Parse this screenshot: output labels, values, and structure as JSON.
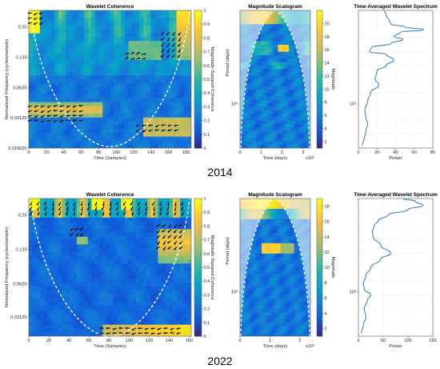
{
  "figure": {
    "rows": [
      {
        "year_label": "2014"
      },
      {
        "year_label": "2022"
      }
    ]
  },
  "colors": {
    "parula": [
      "#352a87",
      "#0f5cdd",
      "#1481d6",
      "#06a4ca",
      "#2eb7a4",
      "#87bf77",
      "#d1bb59",
      "#fec832",
      "#f9fb0e"
    ],
    "coi_line": "#ffffff",
    "arrow": "#000000",
    "spectrum_line": "#2c7fb8"
  },
  "chart_data": [
    {
      "type": "heatmap",
      "year": "2014",
      "title": "Wavelet Coherence",
      "xlabel": "Time (Samples)",
      "ylabel": "Normalized Frequency  (cycles/sample)",
      "xticks": [
        "0",
        "20",
        "40",
        "60",
        "80",
        "100",
        "120",
        "140",
        "160",
        "180"
      ],
      "xlim": [
        0,
        186
      ],
      "yticks": [
        "0.25",
        "0.125",
        "0.0625",
        "0.03125",
        "0.015625"
      ],
      "yscale": "log2",
      "colorbar": {
        "label": "Magnitude-Squared Coherence",
        "ticks": [
          "0",
          "0.1",
          "0.2",
          "0.3",
          "0.4",
          "0.5",
          "0.6",
          "0.7",
          "0.8",
          "0.9",
          "1"
        ],
        "range": [
          0,
          1
        ]
      }
    },
    {
      "type": "heatmap",
      "year": "2014",
      "title": "Magnitude Scalogram",
      "xlabel": "Time (days)",
      "x_exponent": "x10⁴",
      "ylabel": "Period (days)",
      "xticks": [
        "0",
        "1",
        "2",
        "3"
      ],
      "y_decade_label": "10³",
      "colorbar": {
        "label": "Magnitude",
        "ticks": [
          "2",
          "4",
          "6",
          "8",
          "10",
          "12",
          "14",
          "16",
          "18",
          "20"
        ],
        "range": [
          1,
          22
        ]
      }
    },
    {
      "type": "line",
      "year": "2014",
      "title": "Time-Averaged Wavelet Spectrum",
      "xlabel": "Power",
      "xticks": [
        "0",
        "20",
        "40",
        "60",
        "80"
      ],
      "xlim": [
        0,
        80
      ],
      "y_decade_label": "10³",
      "series": [
        {
          "points": [
            [
              4,
              0.02
            ],
            [
              6,
              0.06
            ],
            [
              8,
              0.12
            ],
            [
              10,
              0.18
            ],
            [
              8,
              0.22
            ],
            [
              7,
              0.28
            ],
            [
              10,
              0.34
            ],
            [
              13,
              0.4
            ],
            [
              22,
              0.46
            ],
            [
              18,
              0.5
            ],
            [
              20,
              0.56
            ],
            [
              30,
              0.6
            ],
            [
              38,
              0.64
            ],
            [
              30,
              0.68
            ],
            [
              12,
              0.7
            ],
            [
              14,
              0.73
            ],
            [
              35,
              0.76
            ],
            [
              48,
              0.79
            ],
            [
              38,
              0.81
            ],
            [
              45,
              0.84
            ],
            [
              70,
              0.86
            ],
            [
              50,
              0.88
            ],
            [
              35,
              0.9
            ],
            [
              33,
              0.93
            ],
            [
              30,
              0.96
            ],
            [
              28,
              1.0
            ]
          ]
        }
      ]
    },
    {
      "type": "heatmap",
      "year": "2022",
      "title": "Wavelet Coherence",
      "xlabel": "Time (Samples)",
      "ylabel": "Normalized Frequency  (cycles/sample)",
      "xticks": [
        "0",
        "20",
        "40",
        "60",
        "80",
        "100",
        "120",
        "140",
        "160"
      ],
      "xlim": [
        0,
        162
      ],
      "yticks": [
        "0.25",
        "0.125",
        "0.0625",
        "0.03125"
      ],
      "yscale": "log2",
      "colorbar": {
        "label": "Magnitude-Squared Coherence",
        "ticks": [
          "0",
          "0.1",
          "0.2",
          "0.3",
          "0.4",
          "0.5",
          "0.6",
          "0.7",
          "0.8",
          "0.9",
          "1"
        ],
        "range": [
          0,
          1
        ]
      }
    },
    {
      "type": "heatmap",
      "year": "2022",
      "title": "Magnitude Scalogram",
      "xlabel": "Time (days)",
      "x_exponent": "x10⁴",
      "ylabel": "Period (days)",
      "xticks": [
        "0",
        "1",
        "2"
      ],
      "y_decade_label": "10³",
      "colorbar": {
        "label": "Magnitude",
        "ticks": [
          "2",
          "4",
          "6",
          "8",
          "10",
          "12",
          "14",
          "16",
          "18"
        ],
        "range": [
          1,
          19
        ]
      }
    },
    {
      "type": "line",
      "year": "2022",
      "title": "Time-Averaged Wavelet Spectrum",
      "xlabel": "Power",
      "xticks": [
        "0",
        "50",
        "100",
        "150"
      ],
      "xlim": [
        0,
        150
      ],
      "y_decade_label": "10³",
      "series": [
        {
          "points": [
            [
              6,
              0.02
            ],
            [
              10,
              0.08
            ],
            [
              15,
              0.14
            ],
            [
              12,
              0.2
            ],
            [
              18,
              0.26
            ],
            [
              25,
              0.3
            ],
            [
              12,
              0.34
            ],
            [
              10,
              0.38
            ],
            [
              15,
              0.44
            ],
            [
              25,
              0.5
            ],
            [
              45,
              0.56
            ],
            [
              65,
              0.6
            ],
            [
              45,
              0.66
            ],
            [
              30,
              0.72
            ],
            [
              28,
              0.76
            ],
            [
              32,
              0.8
            ],
            [
              40,
              0.84
            ],
            [
              60,
              0.88
            ],
            [
              100,
              0.92
            ],
            [
              130,
              0.95
            ],
            [
              115,
              0.98
            ],
            [
              90,
              1.0
            ]
          ]
        }
      ]
    }
  ]
}
